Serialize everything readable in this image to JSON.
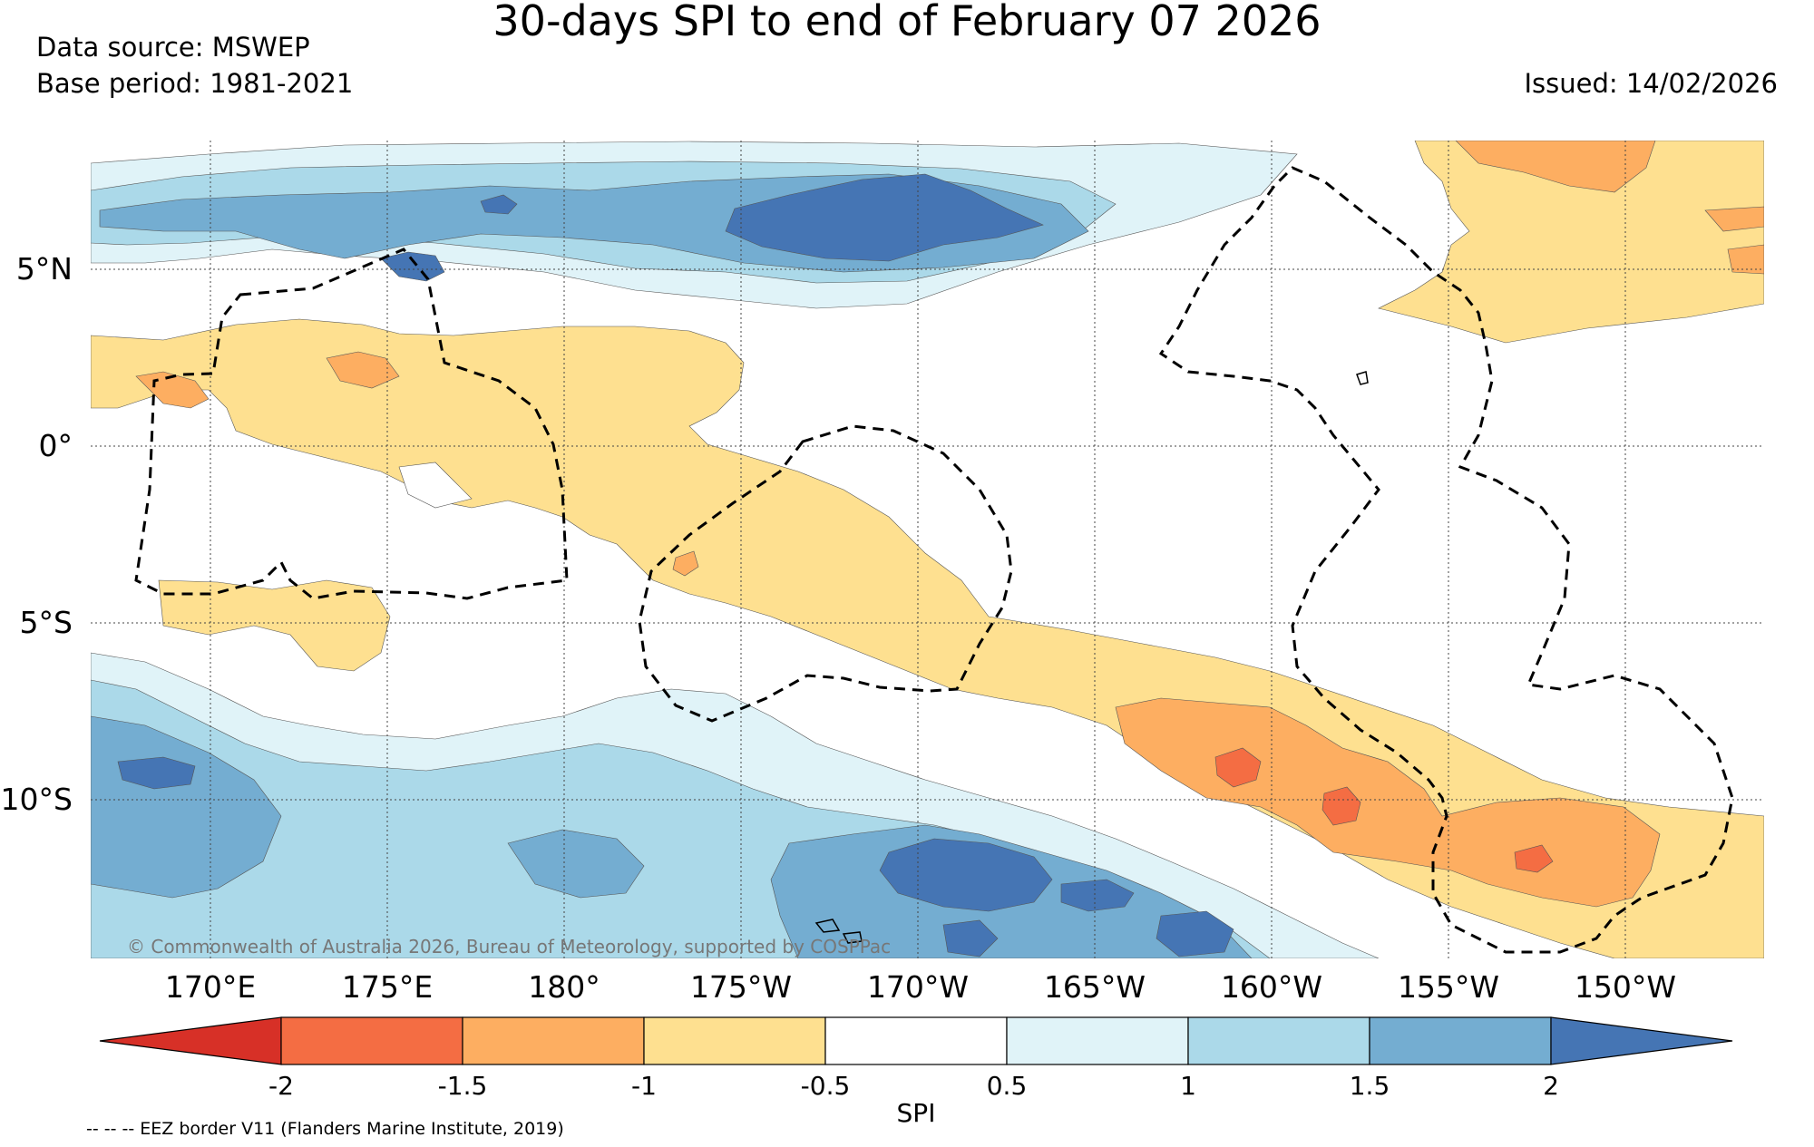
{
  "title": "30-days SPI to end of February 07 2026",
  "data_source": "Data source: MSWEP",
  "base_period": "Base period: 1981-2021",
  "issued": "Issued: 14/02/2026",
  "copyright": "© Commonwealth of Australia 2026, Bureau of Meteorology, supported by COSPPac",
  "footnote": "-- -- -- EEZ border V11 (Flanders Marine Institute, 2019)",
  "lat_labels": [
    "5°N",
    "0°",
    "5°S",
    "10°S"
  ],
  "lon_labels": [
    "170°E",
    "175°E",
    "180°",
    "175°W",
    "170°W",
    "165°W",
    "160°W",
    "155°W",
    "150°W"
  ],
  "colorbar": {
    "title": "SPI",
    "ticks": [
      "-2",
      "-1.5",
      "-1",
      "-0.5",
      "0.5",
      "1",
      "1.5",
      "2"
    ],
    "colors": [
      "#d73027",
      "#f46d43",
      "#fdae61",
      "#fee090",
      "#ffffff",
      "#e0f3f8",
      "#abd9e9",
      "#74add1",
      "#4575b4"
    ]
  },
  "colors": {
    "very_wet": "#4575b4",
    "wet": "#74add1",
    "moderately_wet": "#abd9e9",
    "slightly_wet": "#e0f3f8",
    "normal": "#ffffff",
    "slightly_dry": "#fee090",
    "moderately_dry": "#fdae61",
    "dry": "#f46d43",
    "very_dry": "#d73027"
  }
}
